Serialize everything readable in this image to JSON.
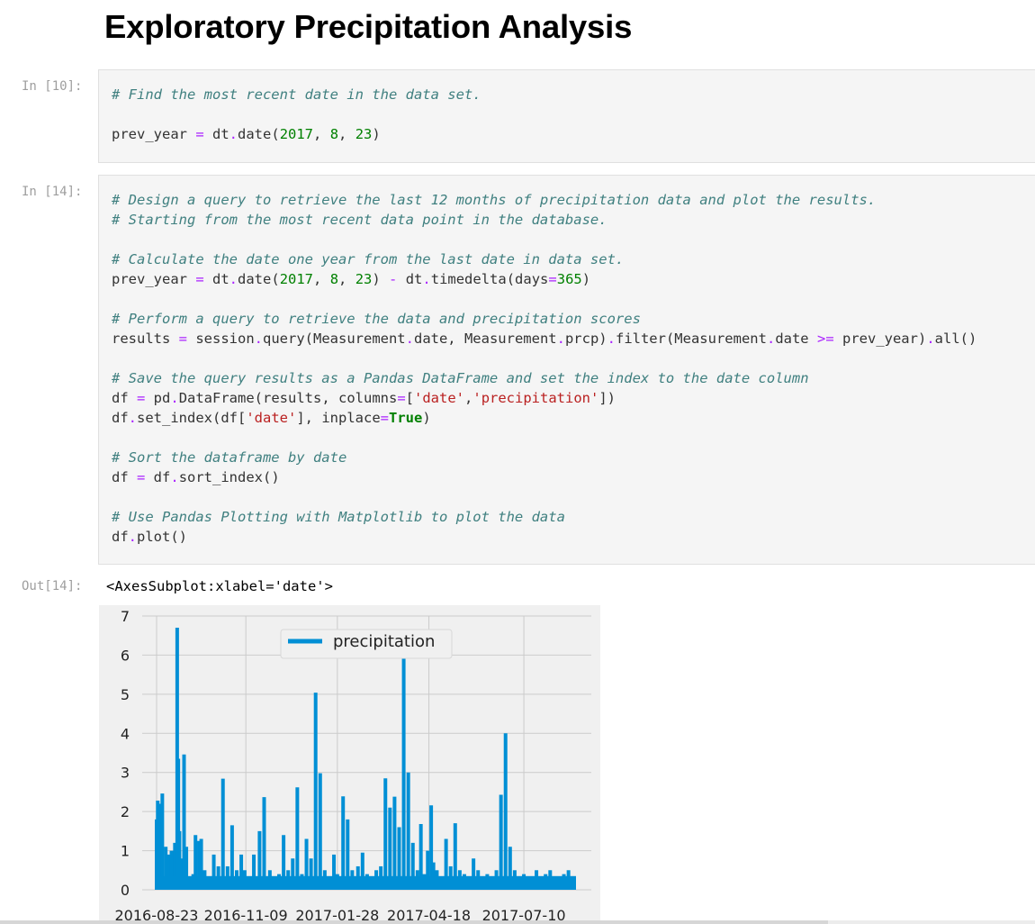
{
  "heading": "Exploratory Precipitation Analysis",
  "cells": [
    {
      "prompt": "In [10]:",
      "lines": [
        [
          {
            "t": "c",
            "v": "# Find the most recent date in the data set."
          }
        ],
        [],
        [
          {
            "t": "p",
            "v": "prev_year "
          },
          {
            "t": "o",
            "v": "="
          },
          {
            "t": "p",
            "v": " dt"
          },
          {
            "t": "o",
            "v": "."
          },
          {
            "t": "p",
            "v": "date("
          },
          {
            "t": "n",
            "v": "2017"
          },
          {
            "t": "p",
            "v": ", "
          },
          {
            "t": "n",
            "v": "8"
          },
          {
            "t": "p",
            "v": ", "
          },
          {
            "t": "n",
            "v": "23"
          },
          {
            "t": "p",
            "v": ")"
          }
        ]
      ]
    },
    {
      "prompt": "In [14]:",
      "lines": [
        [
          {
            "t": "c",
            "v": "# Design a query to retrieve the last 12 months of precipitation data and plot the results."
          }
        ],
        [
          {
            "t": "c",
            "v": "# Starting from the most recent data point in the database."
          }
        ],
        [],
        [
          {
            "t": "c",
            "v": "# Calculate the date one year from the last date in data set."
          }
        ],
        [
          {
            "t": "p",
            "v": "prev_year "
          },
          {
            "t": "o",
            "v": "="
          },
          {
            "t": "p",
            "v": " dt"
          },
          {
            "t": "o",
            "v": "."
          },
          {
            "t": "p",
            "v": "date("
          },
          {
            "t": "n",
            "v": "2017"
          },
          {
            "t": "p",
            "v": ", "
          },
          {
            "t": "n",
            "v": "8"
          },
          {
            "t": "p",
            "v": ", "
          },
          {
            "t": "n",
            "v": "23"
          },
          {
            "t": "p",
            "v": ") "
          },
          {
            "t": "o",
            "v": "-"
          },
          {
            "t": "p",
            "v": " dt"
          },
          {
            "t": "o",
            "v": "."
          },
          {
            "t": "p",
            "v": "timedelta(days"
          },
          {
            "t": "o",
            "v": "="
          },
          {
            "t": "n",
            "v": "365"
          },
          {
            "t": "p",
            "v": ")"
          }
        ],
        [],
        [
          {
            "t": "c",
            "v": "# Perform a query to retrieve the data and precipitation scores"
          }
        ],
        [
          {
            "t": "p",
            "v": "results "
          },
          {
            "t": "o",
            "v": "="
          },
          {
            "t": "p",
            "v": " session"
          },
          {
            "t": "o",
            "v": "."
          },
          {
            "t": "p",
            "v": "query(Measurement"
          },
          {
            "t": "o",
            "v": "."
          },
          {
            "t": "p",
            "v": "date, Measurement"
          },
          {
            "t": "o",
            "v": "."
          },
          {
            "t": "p",
            "v": "prcp)"
          },
          {
            "t": "o",
            "v": "."
          },
          {
            "t": "p",
            "v": "filter(Measurement"
          },
          {
            "t": "o",
            "v": "."
          },
          {
            "t": "p",
            "v": "date "
          },
          {
            "t": "o",
            "v": ">="
          },
          {
            "t": "p",
            "v": " prev_year)"
          },
          {
            "t": "o",
            "v": "."
          },
          {
            "t": "p",
            "v": "all()"
          }
        ],
        [],
        [
          {
            "t": "c",
            "v": "# Save the query results as a Pandas DataFrame and set the index to the date column"
          }
        ],
        [
          {
            "t": "p",
            "v": "df "
          },
          {
            "t": "o",
            "v": "="
          },
          {
            "t": "p",
            "v": " pd"
          },
          {
            "t": "o",
            "v": "."
          },
          {
            "t": "p",
            "v": "DataFrame(results, columns"
          },
          {
            "t": "o",
            "v": "="
          },
          {
            "t": "p",
            "v": "["
          },
          {
            "t": "s",
            "v": "'date'"
          },
          {
            "t": "p",
            "v": ","
          },
          {
            "t": "s",
            "v": "'precipitation'"
          },
          {
            "t": "p",
            "v": "])"
          }
        ],
        [
          {
            "t": "p",
            "v": "df"
          },
          {
            "t": "o",
            "v": "."
          },
          {
            "t": "p",
            "v": "set_index(df["
          },
          {
            "t": "s",
            "v": "'date'"
          },
          {
            "t": "p",
            "v": "], inplace"
          },
          {
            "t": "o",
            "v": "="
          },
          {
            "t": "k",
            "v": "True"
          },
          {
            "t": "p",
            "v": ")"
          }
        ],
        [],
        [
          {
            "t": "c",
            "v": "# Sort the dataframe by date"
          }
        ],
        [
          {
            "t": "p",
            "v": "df "
          },
          {
            "t": "o",
            "v": "="
          },
          {
            "t": "p",
            "v": " df"
          },
          {
            "t": "o",
            "v": "."
          },
          {
            "t": "p",
            "v": "sort_index()"
          }
        ],
        [],
        [
          {
            "t": "c",
            "v": "# Use Pandas Plotting with Matplotlib to plot the data"
          }
        ],
        [
          {
            "t": "p",
            "v": "df"
          },
          {
            "t": "o",
            "v": "."
          },
          {
            "t": "p",
            "v": "plot()"
          }
        ]
      ]
    }
  ],
  "output": {
    "prompt": "Out[14]:",
    "text": "<AxesSubplot:xlabel='date'>"
  },
  "colors": {
    "series": "#008fd5",
    "plot_bg": "#f0f0f0",
    "grid": "#cbcbcb"
  },
  "chart_data": {
    "type": "line",
    "title": "",
    "xlabel": "",
    "ylabel": "",
    "ylim": [
      0,
      7
    ],
    "yticks": [
      0,
      1,
      2,
      3,
      4,
      5,
      6,
      7
    ],
    "xtick_labels": [
      "2016-08-23",
      "2016-11-09",
      "2017-01-28",
      "2017-04-18",
      "2017-07-10"
    ],
    "xlim": [
      "2016-08-23",
      "2017-08-23"
    ],
    "grid": true,
    "legend": {
      "position": "top-center",
      "entries": [
        "precipitation"
      ]
    },
    "series": [
      {
        "name": "precipitation",
        "x": [
          "2016-08-23",
          "2016-08-24",
          "2016-08-26",
          "2016-08-28",
          "2016-08-31",
          "2016-09-03",
          "2016-09-05",
          "2016-09-08",
          "2016-09-10",
          "2016-09-11",
          "2016-09-12",
          "2016-09-14",
          "2016-09-16",
          "2016-09-18",
          "2016-09-21",
          "2016-09-24",
          "2016-09-26",
          "2016-09-29",
          "2016-10-01",
          "2016-10-04",
          "2016-10-08",
          "2016-10-12",
          "2016-10-16",
          "2016-10-20",
          "2016-10-24",
          "2016-10-28",
          "2016-11-01",
          "2016-11-05",
          "2016-11-08",
          "2016-11-12",
          "2016-11-16",
          "2016-11-21",
          "2016-11-25",
          "2016-11-30",
          "2016-12-04",
          "2016-12-08",
          "2016-12-12",
          "2016-12-16",
          "2016-12-20",
          "2016-12-24",
          "2016-12-28",
          "2017-01-01",
          "2017-01-05",
          "2017-01-09",
          "2017-01-13",
          "2017-01-17",
          "2017-01-21",
          "2017-01-25",
          "2017-01-28",
          "2017-02-02",
          "2017-02-06",
          "2017-02-10",
          "2017-02-12",
          "2017-02-15",
          "2017-02-19",
          "2017-02-23",
          "2017-02-27",
          "2017-03-03",
          "2017-03-07",
          "2017-03-11",
          "2017-03-15",
          "2017-03-19",
          "2017-03-23",
          "2017-03-27",
          "2017-03-31",
          "2017-04-04",
          "2017-04-08",
          "2017-04-11",
          "2017-04-14",
          "2017-04-17",
          "2017-04-18",
          "2017-04-20",
          "2017-04-22",
          "2017-04-25",
          "2017-04-29",
          "2017-05-03",
          "2017-05-07",
          "2017-05-11",
          "2017-05-15",
          "2017-05-19",
          "2017-05-23",
          "2017-05-27",
          "2017-05-31",
          "2017-06-04",
          "2017-06-08",
          "2017-06-12",
          "2017-06-16",
          "2017-06-20",
          "2017-06-24",
          "2017-06-28",
          "2017-07-02",
          "2017-07-06",
          "2017-07-10",
          "2017-07-13",
          "2017-07-17",
          "2017-07-21",
          "2017-07-25",
          "2017-07-29",
          "2017-08-02",
          "2017-08-06",
          "2017-08-10",
          "2017-08-14",
          "2017-08-18",
          "2017-08-23"
        ],
        "values": [
          1.8,
          2.28,
          2.2,
          2.46,
          1.1,
          0.9,
          1.0,
          1.2,
          6.7,
          3.35,
          1.5,
          0.8,
          3.46,
          1.1,
          0.3,
          0.4,
          1.4,
          1.25,
          1.3,
          0.5,
          0.3,
          0.9,
          0.6,
          2.84,
          0.6,
          1.65,
          0.5,
          0.9,
          0.5,
          0.3,
          0.9,
          1.5,
          2.37,
          0.5,
          0.2,
          0.4,
          1.4,
          0.5,
          0.8,
          2.62,
          0.4,
          1.3,
          0.8,
          5.04,
          2.98,
          0.5,
          0.3,
          0.9,
          0.4,
          2.39,
          1.8,
          0.5,
          0.3,
          0.6,
          0.95,
          0.4,
          0.2,
          0.5,
          0.6,
          2.85,
          2.1,
          2.38,
          1.6,
          6.25,
          3.0,
          1.2,
          0.5,
          1.68,
          0.4,
          1.0,
          0.3,
          2.16,
          0.7,
          0.5,
          0.3,
          1.3,
          0.6,
          1.7,
          0.5,
          0.4,
          0.3,
          0.8,
          0.5,
          0.2,
          0.4,
          0.3,
          0.5,
          2.43,
          4.0,
          1.1,
          0.5,
          0.3,
          0.4,
          0.2,
          0.3,
          0.5,
          0.3,
          0.4,
          0.5,
          0.3,
          0.2,
          0.4,
          0.5,
          0.3
        ]
      }
    ]
  }
}
